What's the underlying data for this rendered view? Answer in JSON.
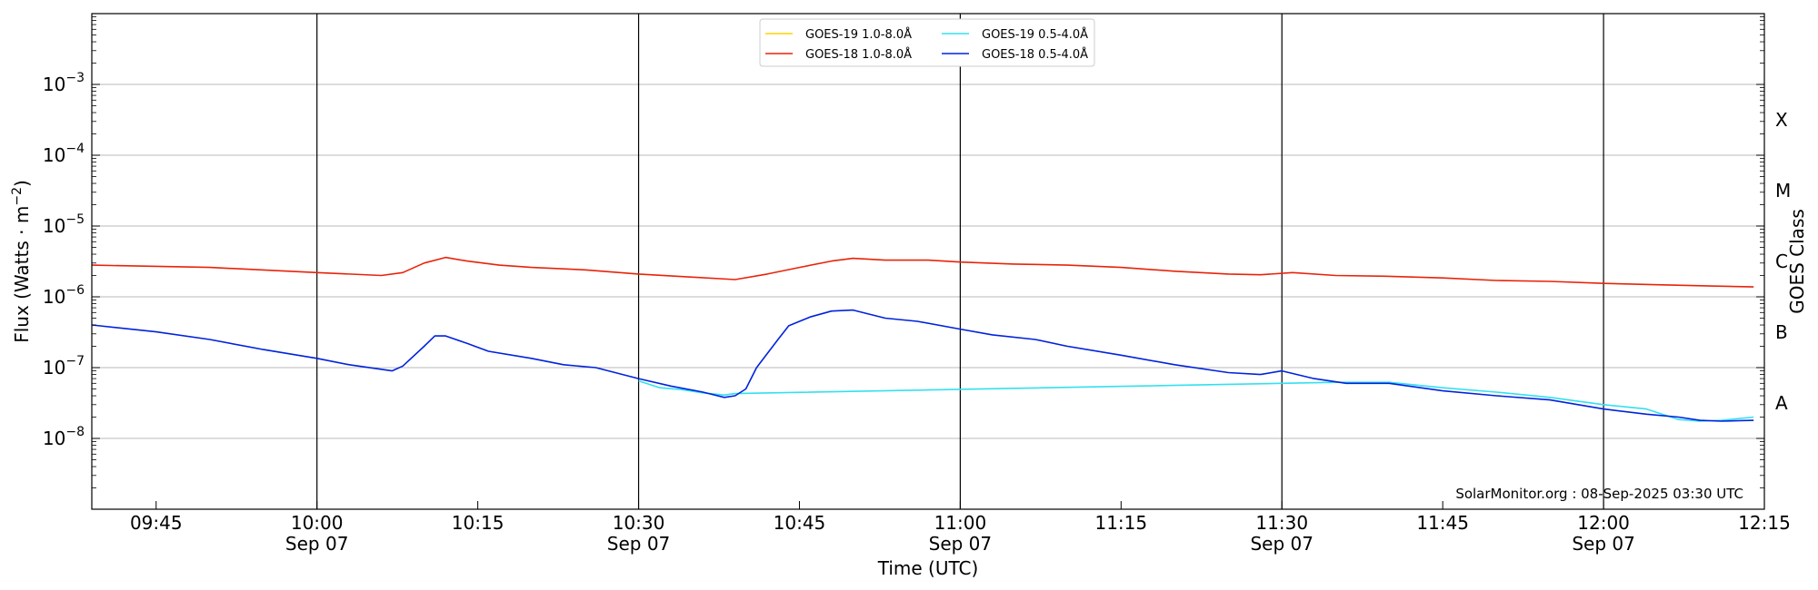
{
  "chart_data": {
    "type": "line",
    "xlabel": "Time (UTC)",
    "ylabel_prefix": "Flux (Watts · m",
    "ylabel_exp": "−2",
    "ylabel_suffix": ")",
    "y2label": "GOES Class",
    "yscale": "log",
    "xlim": [
      "09:39",
      "12:15"
    ],
    "ylim": [
      1e-09,
      0.01
    ],
    "grid": "horizontal",
    "legend_position": "top-center",
    "credit": "SolarMonitor.org : 08-Sep-2025 03:30 UTC",
    "x_ticks": [
      {
        "t": "09:45",
        "label": "09:45",
        "sub": ""
      },
      {
        "t": "10:00",
        "label": "10:00",
        "sub": "Sep 07"
      },
      {
        "t": "10:15",
        "label": "10:15",
        "sub": ""
      },
      {
        "t": "10:30",
        "label": "10:30",
        "sub": "Sep 07"
      },
      {
        "t": "10:45",
        "label": "10:45",
        "sub": ""
      },
      {
        "t": "11:00",
        "label": "11:00",
        "sub": "Sep 07"
      },
      {
        "t": "11:15",
        "label": "11:15",
        "sub": ""
      },
      {
        "t": "11:30",
        "label": "11:30",
        "sub": "Sep 07"
      },
      {
        "t": "11:45",
        "label": "11:45",
        "sub": ""
      },
      {
        "t": "12:00",
        "label": "12:00",
        "sub": "Sep 07"
      },
      {
        "t": "12:15",
        "label": "12:15",
        "sub": ""
      }
    ],
    "day_lines": [
      "10:00",
      "10:30",
      "11:00",
      "11:30",
      "12:00"
    ],
    "y_ticks": [
      {
        "exp": -8,
        "label": "10",
        "sup": "−8"
      },
      {
        "exp": -7,
        "label": "10",
        "sup": "−7"
      },
      {
        "exp": -6,
        "label": "10",
        "sup": "−6"
      },
      {
        "exp": -5,
        "label": "10",
        "sup": "−5"
      },
      {
        "exp": -4,
        "label": "10",
        "sup": "−4"
      },
      {
        "exp": -3,
        "label": "10",
        "sup": "−3"
      }
    ],
    "goes_classes": [
      {
        "label": "A",
        "exp": -7.5
      },
      {
        "label": "B",
        "exp": -6.5
      },
      {
        "label": "C",
        "exp": -5.5
      },
      {
        "label": "M",
        "exp": -4.5
      },
      {
        "label": "X",
        "exp": -3.5
      }
    ],
    "series": [
      {
        "name": "GOES-19 1.0-8.0Å",
        "color": "#ffd000",
        "points": []
      },
      {
        "name": "GOES-18 1.0-8.0Å",
        "color": "#e8230a",
        "points": [
          [
            "09:39",
            2.8e-06
          ],
          [
            "09:50",
            2.6e-06
          ],
          [
            "10:00",
            2.2e-06
          ],
          [
            "10:06",
            2e-06
          ],
          [
            "10:08",
            2.2e-06
          ],
          [
            "10:10",
            3e-06
          ],
          [
            "10:12",
            3.6e-06
          ],
          [
            "10:14",
            3.2e-06
          ],
          [
            "10:17",
            2.8e-06
          ],
          [
            "10:20",
            2.6e-06
          ],
          [
            "10:25",
            2.4e-06
          ],
          [
            "10:30",
            2.1e-06
          ],
          [
            "10:35",
            1.9e-06
          ],
          [
            "10:39",
            1.75e-06
          ],
          [
            "10:42",
            2.1e-06
          ],
          [
            "10:45",
            2.6e-06
          ],
          [
            "10:48",
            3.2e-06
          ],
          [
            "10:50",
            3.5e-06
          ],
          [
            "10:53",
            3.3e-06
          ],
          [
            "10:57",
            3.3e-06
          ],
          [
            "11:00",
            3.1e-06
          ],
          [
            "11:05",
            2.9e-06
          ],
          [
            "11:10",
            2.8e-06
          ],
          [
            "11:15",
            2.6e-06
          ],
          [
            "11:20",
            2.3e-06
          ],
          [
            "11:25",
            2.1e-06
          ],
          [
            "11:28",
            2.05e-06
          ],
          [
            "11:31",
            2.2e-06
          ],
          [
            "11:35",
            2e-06
          ],
          [
            "11:40",
            1.95e-06
          ],
          [
            "11:45",
            1.85e-06
          ],
          [
            "11:50",
            1.7e-06
          ],
          [
            "11:55",
            1.65e-06
          ],
          [
            "12:00",
            1.55e-06
          ],
          [
            "12:05",
            1.48e-06
          ],
          [
            "12:10",
            1.42e-06
          ],
          [
            "12:14",
            1.38e-06
          ]
        ]
      },
      {
        "name": "GOES-19 0.5-4.0Å",
        "color": "#33e0f0",
        "points": [
          [
            "10:30",
            6.5e-08
          ],
          [
            "10:32",
            5.2e-08
          ],
          [
            "10:34",
            4.9e-08
          ],
          [
            "10:36",
            4.4e-08
          ],
          [
            "10:38",
            4.1e-08
          ],
          [
            "10:39",
            4.3e-08
          ],
          [
            "11:35",
            6.2e-08
          ],
          [
            "11:40",
            6.2e-08
          ],
          [
            "11:45",
            5.2e-08
          ],
          [
            "11:50",
            4.5e-08
          ],
          [
            "11:55",
            3.8e-08
          ],
          [
            "12:00",
            3e-08
          ],
          [
            "12:04",
            2.6e-08
          ],
          [
            "12:07",
            1.85e-08
          ],
          [
            "12:09",
            1.75e-08
          ],
          [
            "12:11",
            1.8e-08
          ],
          [
            "12:14",
            2e-08
          ]
        ]
      },
      {
        "name": "GOES-18 0.5-4.0Å",
        "color": "#0022dd",
        "points": [
          [
            "09:39",
            4e-07
          ],
          [
            "09:45",
            3.2e-07
          ],
          [
            "09:50",
            2.5e-07
          ],
          [
            "09:55",
            1.8e-07
          ],
          [
            "10:00",
            1.35e-07
          ],
          [
            "10:03",
            1.1e-07
          ],
          [
            "10:07",
            9e-08
          ],
          [
            "10:08",
            1.05e-07
          ],
          [
            "10:10",
            2e-07
          ],
          [
            "10:11",
            2.8e-07
          ],
          [
            "10:12",
            2.8e-07
          ],
          [
            "10:14",
            2.2e-07
          ],
          [
            "10:16",
            1.7e-07
          ],
          [
            "10:20",
            1.35e-07
          ],
          [
            "10:23",
            1.1e-07
          ],
          [
            "10:26",
            1e-07
          ],
          [
            "10:30",
            7e-08
          ],
          [
            "10:33",
            5.5e-08
          ],
          [
            "10:36",
            4.5e-08
          ],
          [
            "10:38",
            3.8e-08
          ],
          [
            "10:39",
            4e-08
          ],
          [
            "10:40",
            5e-08
          ],
          [
            "10:41",
            1e-07
          ],
          [
            "10:43",
            2.5e-07
          ],
          [
            "10:44",
            3.9e-07
          ],
          [
            "10:46",
            5.2e-07
          ],
          [
            "10:48",
            6.3e-07
          ],
          [
            "10:50",
            6.5e-07
          ],
          [
            "10:53",
            5e-07
          ],
          [
            "10:56",
            4.5e-07
          ],
          [
            "11:00",
            3.5e-07
          ],
          [
            "11:03",
            2.9e-07
          ],
          [
            "11:07",
            2.5e-07
          ],
          [
            "11:10",
            2e-07
          ],
          [
            "11:15",
            1.5e-07
          ],
          [
            "11:20",
            1.1e-07
          ],
          [
            "11:25",
            8.5e-08
          ],
          [
            "11:28",
            8e-08
          ],
          [
            "11:30",
            9e-08
          ],
          [
            "11:33",
            7e-08
          ],
          [
            "11:36",
            6e-08
          ],
          [
            "11:40",
            6e-08
          ],
          [
            "11:45",
            4.7e-08
          ],
          [
            "11:50",
            4e-08
          ],
          [
            "11:55",
            3.5e-08
          ],
          [
            "12:00",
            2.6e-08
          ],
          [
            "12:04",
            2.2e-08
          ],
          [
            "12:07",
            2e-08
          ],
          [
            "12:09",
            1.8e-08
          ],
          [
            "12:11",
            1.75e-08
          ],
          [
            "12:14",
            1.8e-08
          ]
        ]
      }
    ]
  }
}
